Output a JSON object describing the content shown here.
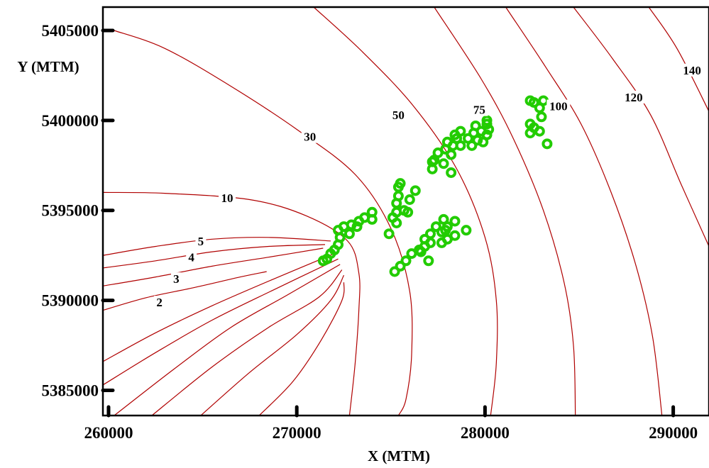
{
  "chart_data": {
    "type": "contour",
    "xlabel": "X (MTM)",
    "ylabel": "Y (MTM)",
    "xlim": [
      259700,
      291900
    ],
    "ylim": [
      5383600,
      5406300
    ],
    "x_ticks": [
      {
        "value": 260000,
        "label": "260000"
      },
      {
        "value": 270000,
        "label": "270000"
      },
      {
        "value": 280000,
        "label": "280000"
      },
      {
        "value": 290000,
        "label": "290000"
      }
    ],
    "y_ticks": [
      {
        "value": 5405000,
        "label": "5405000"
      },
      {
        "value": 5400000,
        "label": "5400000"
      },
      {
        "value": 5395000,
        "label": "5395000"
      },
      {
        "value": 5390000,
        "label": "5390000"
      },
      {
        "value": 5385000,
        "label": "5385000"
      }
    ],
    "contour_color": "#b00000",
    "point_color": "#22cc00",
    "contours": [
      {
        "label": "2",
        "label_at": [
          262700,
          5389900
        ],
        "points": [
          [
            259700,
            5389450
          ],
          [
            262000,
            5390150
          ],
          [
            264500,
            5390700
          ],
          [
            267000,
            5391300
          ],
          [
            268400,
            5391600
          ]
        ]
      },
      {
        "label": "3",
        "label_at": [
          263600,
          5391200
        ],
        "points": [
          [
            259700,
            5390800
          ],
          [
            262500,
            5391300
          ],
          [
            265500,
            5391900
          ],
          [
            268500,
            5392400
          ],
          [
            271400,
            5392900
          ]
        ]
      },
      {
        "label": "4",
        "label_at": [
          264400,
          5392400
        ],
        "points": [
          [
            259700,
            5391800
          ],
          [
            262500,
            5392200
          ],
          [
            265500,
            5392700
          ],
          [
            268500,
            5393000
          ],
          [
            271500,
            5393100
          ]
        ]
      },
      {
        "label": "5",
        "label_at": [
          264900,
          5393300
        ],
        "points": [
          [
            259700,
            5392500
          ],
          [
            262500,
            5393000
          ],
          [
            265500,
            5393400
          ],
          [
            268500,
            5393500
          ],
          [
            271800,
            5393300
          ]
        ]
      },
      {
        "label": "",
        "label_at": null,
        "points": [
          [
            259700,
            5386600
          ],
          [
            262500,
            5388200
          ],
          [
            265500,
            5389700
          ],
          [
            268800,
            5391200
          ],
          [
            272000,
            5392600
          ]
        ]
      },
      {
        "label": "",
        "label_at": null,
        "points": [
          [
            259700,
            5385300
          ],
          [
            262500,
            5387100
          ],
          [
            265500,
            5388900
          ],
          [
            268800,
            5390600
          ],
          [
            272200,
            5392300
          ]
        ]
      },
      {
        "label": "",
        "label_at": null,
        "points": [
          [
            260300,
            5383600
          ],
          [
            263500,
            5386200
          ],
          [
            266500,
            5388500
          ],
          [
            269500,
            5390300
          ],
          [
            272300,
            5392000
          ]
        ]
      },
      {
        "label": "",
        "label_at": null,
        "points": [
          [
            262300,
            5383600
          ],
          [
            265500,
            5386300
          ],
          [
            268500,
            5388500
          ],
          [
            271200,
            5390200
          ],
          [
            272400,
            5391700
          ]
        ]
      },
      {
        "label": "",
        "label_at": null,
        "points": [
          [
            264900,
            5383600
          ],
          [
            267500,
            5386000
          ],
          [
            270000,
            5388100
          ],
          [
            271800,
            5390000
          ],
          [
            272500,
            5391400
          ]
        ]
      },
      {
        "label": "",
        "label_at": null,
        "points": [
          [
            268000,
            5383600
          ],
          [
            269800,
            5385500
          ],
          [
            271300,
            5387800
          ],
          [
            272400,
            5390000
          ],
          [
            272500,
            5391000
          ]
        ]
      },
      {
        "label": "10",
        "label_at": [
          266300,
          5395700
        ],
        "points": [
          [
            259700,
            5396000
          ],
          [
            263000,
            5395950
          ],
          [
            267500,
            5395600
          ],
          [
            270500,
            5394700
          ],
          [
            272700,
            5393300
          ],
          [
            273300,
            5391500
          ],
          [
            273300,
            5389500
          ],
          [
            273100,
            5386500
          ],
          [
            272800,
            5383600
          ]
        ]
      },
      {
        "label": "30",
        "label_at": [
          270700,
          5399100
        ],
        "points": [
          [
            260300,
            5405000
          ],
          [
            263000,
            5404000
          ],
          [
            266500,
            5401900
          ],
          [
            270000,
            5399500
          ],
          [
            273100,
            5397000
          ],
          [
            275000,
            5394000
          ],
          [
            276000,
            5390500
          ],
          [
            276100,
            5387000
          ],
          [
            275800,
            5384500
          ],
          [
            275400,
            5383600
          ]
        ]
      },
      {
        "label": "50",
        "label_at": [
          275400,
          5400300
        ],
        "points": [
          [
            270900,
            5406300
          ],
          [
            273500,
            5403800
          ],
          [
            276200,
            5400800
          ],
          [
            278500,
            5397300
          ],
          [
            280000,
            5393500
          ],
          [
            280600,
            5390000
          ],
          [
            280600,
            5386500
          ],
          [
            280300,
            5383600
          ]
        ]
      },
      {
        "label": "75",
        "label_at": [
          279700,
          5400600
        ],
        "points": [
          [
            277300,
            5406300
          ],
          [
            279800,
            5402300
          ],
          [
            281500,
            5399000
          ],
          [
            283100,
            5395000
          ],
          [
            284200,
            5391000
          ],
          [
            284700,
            5387500
          ],
          [
            284800,
            5383600
          ]
        ]
      },
      {
        "label": "100",
        "label_at": [
          283900,
          5400800
        ],
        "points": [
          [
            281100,
            5406300
          ],
          [
            283200,
            5403000
          ],
          [
            285100,
            5399800
          ],
          [
            286700,
            5396000
          ],
          [
            288000,
            5392000
          ],
          [
            288900,
            5388000
          ],
          [
            289400,
            5383600
          ]
        ]
      },
      {
        "label": "120",
        "label_at": [
          287900,
          5401300
        ],
        "points": [
          [
            284700,
            5406300
          ],
          [
            286800,
            5403400
          ],
          [
            288800,
            5400300
          ],
          [
            290400,
            5396500
          ],
          [
            291900,
            5393000
          ]
        ]
      },
      {
        "label": "140",
        "label_at": [
          291000,
          5402800
        ],
        "points": [
          [
            288700,
            5406300
          ],
          [
            290200,
            5404000
          ],
          [
            291900,
            5400500
          ]
        ]
      }
    ],
    "points": [
      [
        271400,
        5392200
      ],
      [
        271600,
        5392300
      ],
      [
        271800,
        5392600
      ],
      [
        272000,
        5392800
      ],
      [
        272200,
        5393100
      ],
      [
        272300,
        5393500
      ],
      [
        272200,
        5393900
      ],
      [
        272500,
        5394100
      ],
      [
        272800,
        5393700
      ],
      [
        272900,
        5394200
      ],
      [
        273200,
        5394100
      ],
      [
        273300,
        5394400
      ],
      [
        273600,
        5394600
      ],
      [
        274000,
        5394500
      ],
      [
        274000,
        5394900
      ],
      [
        274900,
        5393700
      ],
      [
        275100,
        5394600
      ],
      [
        275300,
        5394900
      ],
      [
        275300,
        5395400
      ],
      [
        275400,
        5395800
      ],
      [
        275400,
        5396300
      ],
      [
        275500,
        5396500
      ],
      [
        275700,
        5395000
      ],
      [
        276000,
        5395600
      ],
      [
        276300,
        5396100
      ],
      [
        275900,
        5394900
      ],
      [
        275300,
        5394300
      ],
      [
        275200,
        5391600
      ],
      [
        275500,
        5391900
      ],
      [
        275800,
        5392200
      ],
      [
        276100,
        5392600
      ],
      [
        276500,
        5392800
      ],
      [
        276800,
        5393000
      ],
      [
        276800,
        5393400
      ],
      [
        277100,
        5393200
      ],
      [
        277100,
        5393700
      ],
      [
        277400,
        5394100
      ],
      [
        277700,
        5393800
      ],
      [
        277800,
        5394500
      ],
      [
        278000,
        5394100
      ],
      [
        278000,
        5393400
      ],
      [
        278400,
        5393600
      ],
      [
        278400,
        5394400
      ],
      [
        279000,
        5393900
      ],
      [
        277000,
        5392200
      ],
      [
        276600,
        5392700
      ],
      [
        277700,
        5393200
      ],
      [
        277900,
        5393900
      ],
      [
        277200,
        5397300
      ],
      [
        277200,
        5397700
      ],
      [
        277500,
        5398200
      ],
      [
        277900,
        5398400
      ],
      [
        278200,
        5398100
      ],
      [
        278000,
        5398800
      ],
      [
        278300,
        5398600
      ],
      [
        278400,
        5399200
      ],
      [
        278700,
        5398600
      ],
      [
        278700,
        5399400
      ],
      [
        279100,
        5399000
      ],
      [
        279300,
        5398600
      ],
      [
        279400,
        5399300
      ],
      [
        279500,
        5399700
      ],
      [
        279800,
        5399400
      ],
      [
        279900,
        5398800
      ],
      [
        280100,
        5399200
      ],
      [
        280200,
        5399500
      ],
      [
        280100,
        5399800
      ],
      [
        280100,
        5400000
      ],
      [
        277800,
        5397600
      ],
      [
        278200,
        5397100
      ],
      [
        277300,
        5397800
      ],
      [
        278500,
        5399000
      ],
      [
        279600,
        5398900
      ],
      [
        282400,
        5401100
      ],
      [
        282600,
        5401000
      ],
      [
        282900,
        5400700
      ],
      [
        283100,
        5401100
      ],
      [
        283000,
        5400200
      ],
      [
        282400,
        5399800
      ],
      [
        282600,
        5399600
      ],
      [
        282900,
        5399400
      ],
      [
        282400,
        5399300
      ],
      [
        283300,
        5398700
      ]
    ]
  }
}
